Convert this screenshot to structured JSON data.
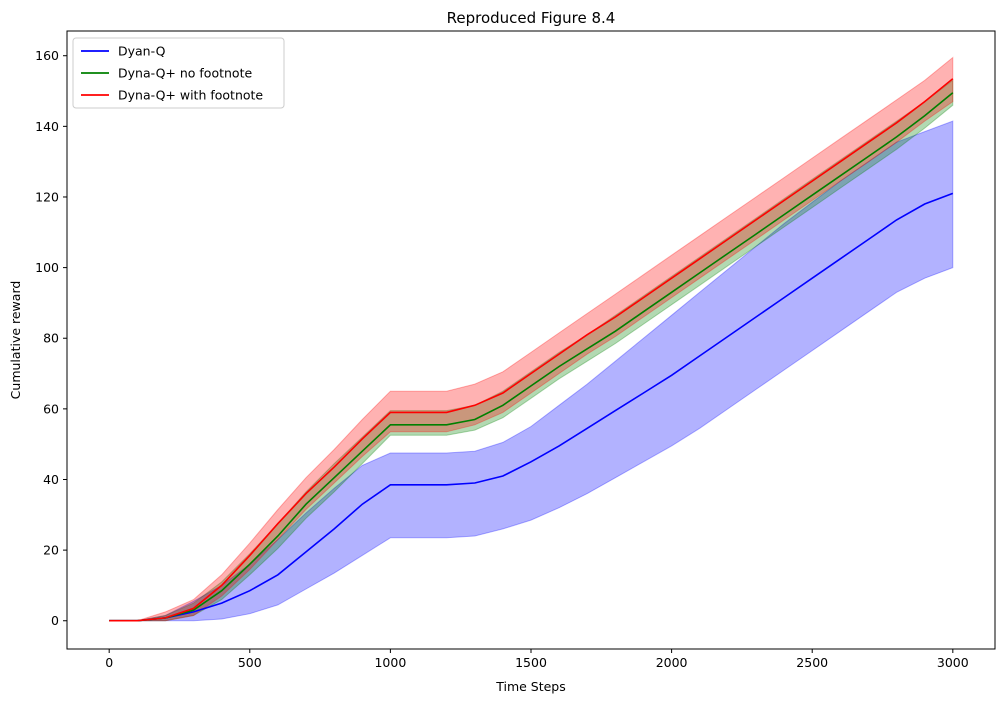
{
  "chart_data": {
    "type": "line",
    "title": "Reproduced Figure 8.4",
    "xlabel": "Time Steps",
    "ylabel": "Cumulative reward",
    "xlim": [
      -150,
      3150
    ],
    "ylim": [
      -8,
      167
    ],
    "xticks": [
      0,
      500,
      1000,
      1500,
      2000,
      2500,
      3000
    ],
    "yticks": [
      0,
      20,
      40,
      60,
      80,
      100,
      120,
      140,
      160
    ],
    "legend_position": "upper-left",
    "grid": false,
    "x": [
      0,
      100,
      200,
      300,
      400,
      500,
      600,
      700,
      800,
      900,
      1000,
      1100,
      1200,
      1300,
      1400,
      1500,
      1600,
      1700,
      1800,
      1900,
      2000,
      2100,
      2200,
      2300,
      2400,
      2500,
      2600,
      2700,
      2800,
      2900,
      3000
    ],
    "series": [
      {
        "name": "Dyan-Q",
        "color": "#0000ff",
        "values": [
          0,
          0,
          0.8,
          2.5,
          5,
          8.5,
          13,
          19.5,
          26,
          33,
          38.5,
          38.5,
          38.5,
          39,
          41,
          45,
          49.5,
          54.5,
          59.5,
          64.5,
          69.5,
          75,
          80.5,
          86,
          91.5,
          97,
          102.5,
          108,
          113.5,
          118,
          121
        ],
        "lower": [
          0,
          0,
          0,
          0,
          0.5,
          2,
          4.5,
          9,
          13.5,
          18.5,
          23.5,
          23.5,
          23.5,
          24,
          26,
          28.5,
          32,
          36,
          40.5,
          45,
          49.5,
          54.5,
          60,
          65.5,
          71,
          76.5,
          82,
          87.5,
          93,
          97,
          100
        ],
        "upper": [
          0,
          0,
          1.5,
          5.5,
          10,
          16,
          23,
          30.5,
          37.5,
          44,
          47.5,
          47.5,
          47.5,
          48,
          50.5,
          55,
          61,
          67,
          73.5,
          80,
          86.5,
          93,
          99.5,
          106,
          112.5,
          118.5,
          124.5,
          130,
          135.5,
          138.5,
          141.5
        ]
      },
      {
        "name": "Dyna-Q+ no footnote",
        "color": "#008000",
        "values": [
          0,
          0,
          0.8,
          3,
          8.5,
          16,
          24,
          33,
          40.5,
          48,
          55.5,
          55.5,
          55.5,
          57,
          61,
          66.5,
          72,
          77,
          82,
          87.5,
          93,
          98.5,
          104,
          109.5,
          115,
          120.5,
          126,
          131.5,
          137,
          143,
          149.5
        ],
        "lower": [
          0,
          0,
          0,
          1.5,
          6,
          13,
          20.5,
          29,
          36.5,
          44.5,
          52.5,
          52.5,
          52.5,
          54,
          57.5,
          63,
          68.5,
          73.5,
          78.5,
          84,
          89.5,
          95,
          100.5,
          106,
          111.5,
          117,
          122.5,
          128,
          133.5,
          139.5,
          146
        ],
        "upper": [
          0,
          0,
          1.5,
          5,
          11,
          19,
          27.5,
          36.5,
          44.5,
          52,
          59.5,
          59.5,
          59.5,
          61,
          65,
          70.5,
          76,
          81,
          86.5,
          92,
          97.5,
          103,
          108.5,
          114,
          119.5,
          125,
          130.5,
          136,
          141.5,
          147,
          153
        ]
      },
      {
        "name": "Dyna-Q+ with footnote",
        "color": "#ff0000",
        "values": [
          0,
          0,
          0.8,
          3.5,
          10,
          18.5,
          27.5,
          36,
          43.5,
          51.5,
          59,
          59,
          59,
          61,
          64.5,
          70,
          75.5,
          81,
          86,
          91.5,
          97,
          102.5,
          108,
          113.5,
          119,
          124.5,
          130,
          135.5,
          141,
          147,
          153.5
        ],
        "lower": [
          0,
          0,
          0,
          1.5,
          7,
          14.5,
          23,
          31.5,
          39,
          46.5,
          53.5,
          53.5,
          53.5,
          55.5,
          59,
          64.5,
          70,
          75.5,
          80.5,
          86,
          91.5,
          97,
          102.5,
          108,
          113.5,
          119,
          124.5,
          130,
          135.5,
          141.5,
          147
        ],
        "upper": [
          0,
          0,
          2.5,
          6,
          13,
          22,
          31.5,
          40.5,
          48.5,
          57,
          65,
          65,
          65,
          67,
          70.5,
          76,
          81.5,
          87,
          92.5,
          98,
          103.5,
          109,
          114.5,
          120,
          125.5,
          131,
          136.5,
          142,
          147.5,
          153,
          159.5
        ]
      }
    ]
  }
}
